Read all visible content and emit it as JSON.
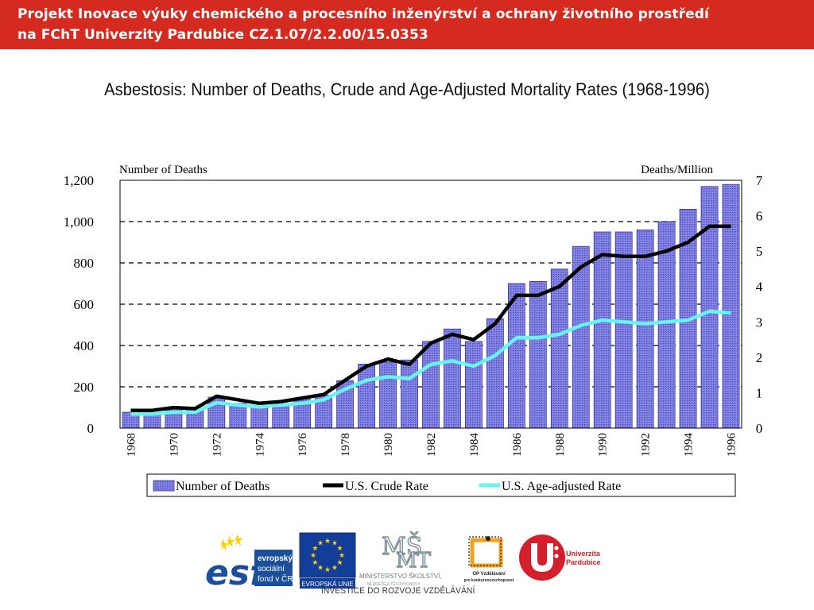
{
  "header": {
    "line1": "Projekt Inovace výuky chemického a procesního inženýrství a ochrany životního prostředí",
    "line2": "na FChT Univerzity Pardubice CZ.1.07/2.2.00/15.0353"
  },
  "slide": {
    "title": "Asbestosis:  Number of Deaths, Crude and Age-Adjusted Mortality Rates (1968-1996)"
  },
  "chart_data": {
    "type": "bar",
    "left_axis_label": "Number of Deaths",
    "right_axis_label": "Deaths/Million",
    "x": [
      1968,
      1969,
      1970,
      1971,
      1972,
      1973,
      1974,
      1975,
      1976,
      1977,
      1978,
      1979,
      1980,
      1981,
      1982,
      1983,
      1984,
      1985,
      1986,
      1987,
      1988,
      1989,
      1990,
      1991,
      1992,
      1993,
      1994,
      1995,
      1996
    ],
    "x_tick_labels": [
      "1968",
      "1970",
      "1972",
      "1974",
      "1976",
      "1978",
      "1980",
      "1982",
      "1984",
      "1986",
      "1988",
      "1990",
      "1992",
      "1994",
      "1996"
    ],
    "ylim_left": [
      0,
      1200
    ],
    "yticks_left": [
      "0",
      "200",
      "400",
      "600",
      "800",
      "1,000",
      "1,200"
    ],
    "ylim_right": [
      0,
      7
    ],
    "yticks_right": [
      "0",
      "1",
      "2",
      "3",
      "4",
      "5",
      "6",
      "7"
    ],
    "grid": "horizontal dashed",
    "legend_position": "bottom",
    "series": [
      {
        "name": "Number of Deaths",
        "kind": "bar",
        "axis": "left",
        "color": "#7777dd",
        "values": [
          77,
          75,
          100,
          90,
          150,
          120,
          110,
          120,
          140,
          160,
          230,
          310,
          320,
          330,
          420,
          480,
          420,
          530,
          700,
          710,
          770,
          880,
          950,
          950,
          960,
          1000,
          1060,
          1170,
          1180
        ]
      },
      {
        "name": "U.S. Crude Rate",
        "kind": "line",
        "axis": "right",
        "color": "#000000",
        "values": [
          0.5,
          0.5,
          0.58,
          0.55,
          0.9,
          0.8,
          0.7,
          0.75,
          0.85,
          0.95,
          1.35,
          1.75,
          1.95,
          1.8,
          2.4,
          2.65,
          2.5,
          2.95,
          3.75,
          3.75,
          4.0,
          4.55,
          4.9,
          4.85,
          4.85,
          5.0,
          5.25,
          5.7,
          5.7
        ]
      },
      {
        "name": "U.S. Age-adjusted Rate",
        "kind": "line",
        "axis": "right",
        "color": "#66f5f0",
        "values": [
          0.4,
          0.4,
          0.45,
          0.45,
          0.72,
          0.65,
          0.6,
          0.65,
          0.7,
          0.8,
          1.1,
          1.35,
          1.45,
          1.4,
          1.8,
          1.9,
          1.75,
          2.05,
          2.55,
          2.55,
          2.65,
          2.9,
          3.05,
          3.0,
          2.95,
          3.0,
          3.05,
          3.3,
          3.25
        ]
      }
    ]
  },
  "footer": {
    "esf_text": [
      "evropský",
      "sociální",
      "fond v ČR"
    ],
    "eu_text": "EVROPSKÁ UNIE",
    "msmt_text": [
      "MINISTERSTVO ŠKOLSTVÍ,",
      "MLÁDEŽE A TĚLOVÝCHOVY"
    ],
    "op_text": [
      "OP Vzdělávání",
      "pro konkurenceschopnost"
    ],
    "upce_text": [
      "Univerzita",
      "Pardubice"
    ],
    "tagline": "INVESTICE DO ROZVOJE VZDĚLÁVÁNÍ",
    "colors": {
      "esf_blue": "#1b4f9c",
      "eu_blue": "#123e9a",
      "eu_star": "#ffd200",
      "upce_red": "#d21f2b"
    }
  }
}
